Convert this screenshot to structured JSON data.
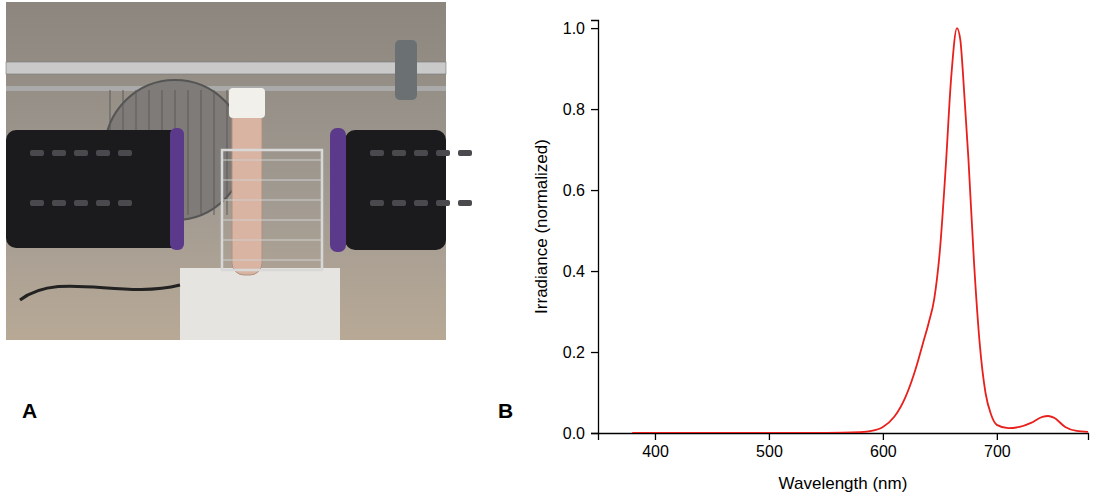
{
  "panel_labels": [
    "A",
    "B"
  ],
  "chart_data": {
    "type": "line",
    "x_label": "Wavelength (nm)",
    "y_label": "Irradiance (normalized)",
    "x": [
      380,
      400,
      450,
      500,
      550,
      580,
      590,
      600,
      610,
      620,
      630,
      635,
      640,
      645,
      650,
      655,
      660,
      665,
      668,
      670,
      675,
      680,
      685,
      690,
      695,
      700,
      710,
      720,
      730,
      740,
      745,
      750,
      760,
      770,
      780
    ],
    "values": [
      0,
      0,
      0,
      0,
      0,
      0.002,
      0.005,
      0.015,
      0.04,
      0.09,
      0.17,
      0.22,
      0.27,
      0.33,
      0.45,
      0.65,
      0.88,
      1.0,
      0.97,
      0.9,
      0.68,
      0.42,
      0.22,
      0.1,
      0.045,
      0.02,
      0.012,
      0.015,
      0.025,
      0.04,
      0.042,
      0.038,
      0.015,
      0.005,
      0.003
    ],
    "color": "#e8201c",
    "line_style": "solid",
    "xlim": [
      350,
      780
    ],
    "xticks": [
      400,
      500,
      600,
      700
    ],
    "ylim": [
      0,
      1.02
    ],
    "yticks": [
      {
        "value": 0,
        "label": "0.0"
      },
      {
        "value": 0.2,
        "label": "0.2"
      },
      {
        "value": 0.4,
        "label": "0.4"
      },
      {
        "value": 0.6,
        "label": "0.6"
      },
      {
        "value": 0.8,
        "label": "0.8"
      },
      {
        "value": 1.0,
        "label": "1.0"
      }
    ],
    "grid": false
  }
}
